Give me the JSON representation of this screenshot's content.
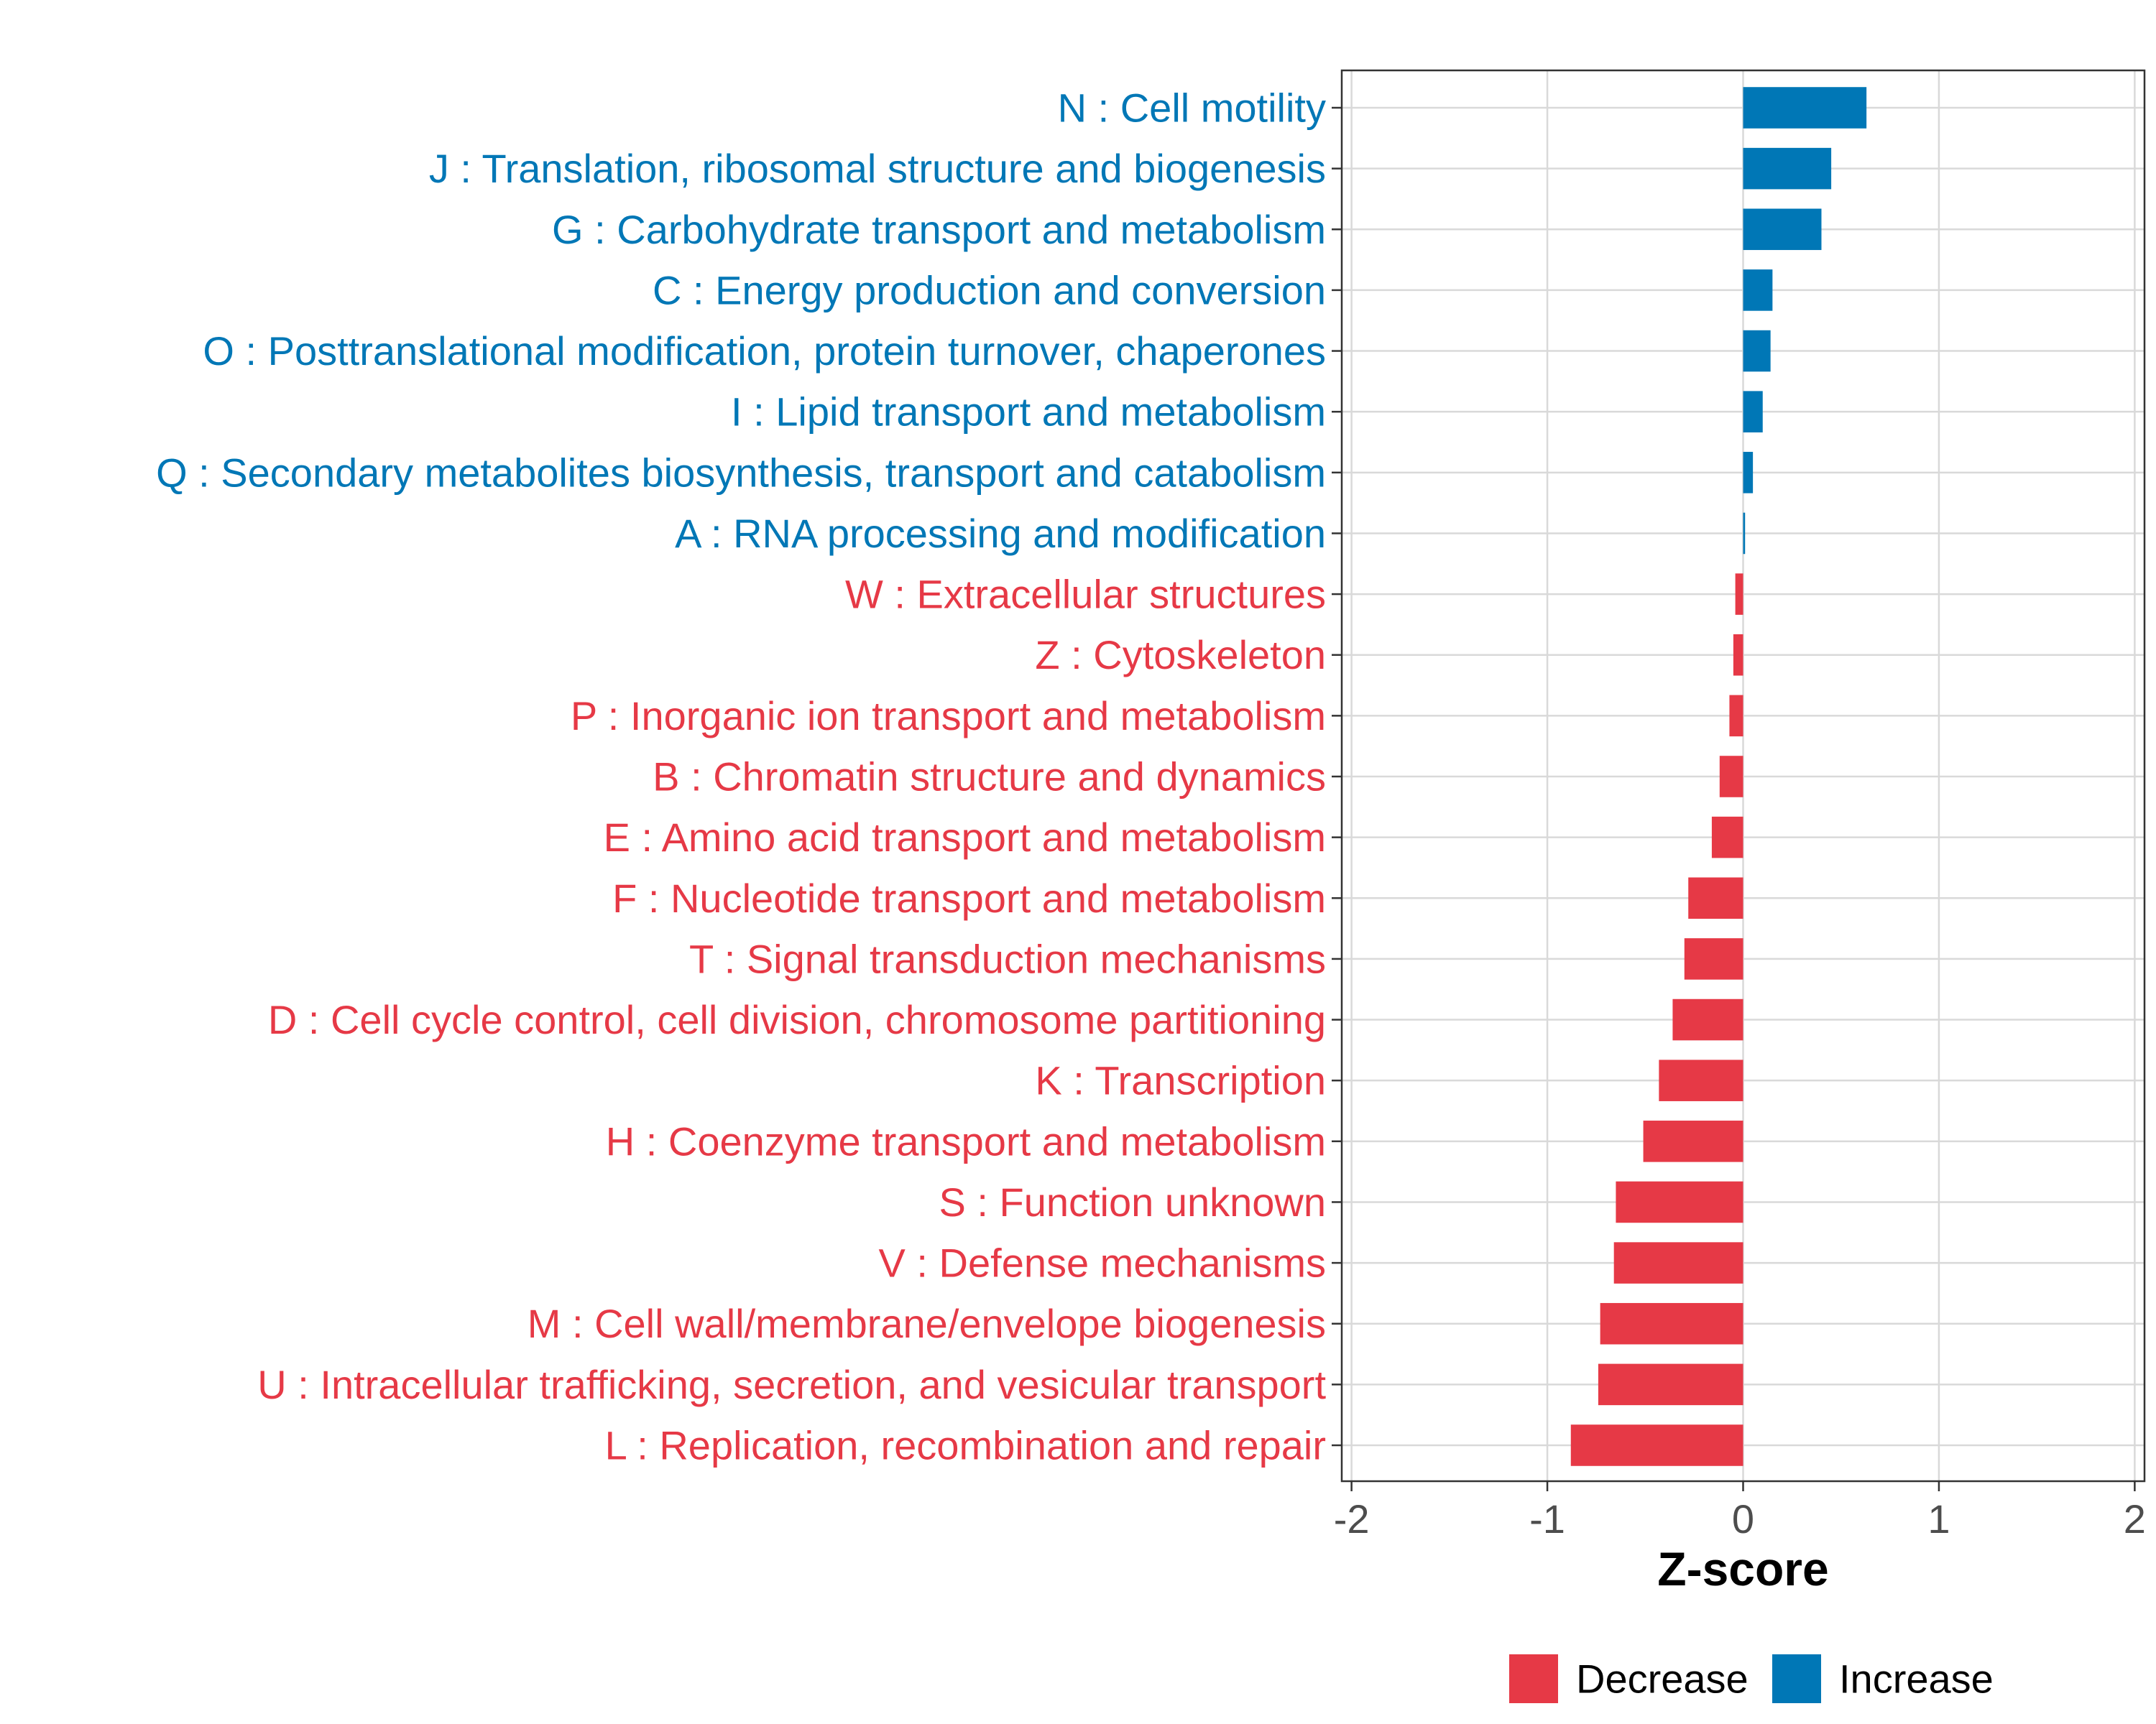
{
  "chart_data": {
    "type": "bar",
    "orientation": "horizontal",
    "title": "",
    "xlabel": "Z-score",
    "ylabel": "",
    "xlim": [
      -2.05,
      2.05
    ],
    "x_ticks": [
      -2,
      -1,
      0,
      1,
      2
    ],
    "x_tick_labels": [
      "-2",
      "-1",
      "0",
      "1",
      "2"
    ],
    "grid": true,
    "colors": {
      "Decrease": "#e63946",
      "Increase": "#0077b6"
    },
    "categories": [
      "N : Cell motility",
      "J : Translation, ribosomal structure and biogenesis",
      "G : Carbohydrate transport and metabolism",
      "C : Energy production and conversion",
      "O : Posttranslational modification, protein turnover, chaperones",
      "I : Lipid transport and metabolism",
      "Q : Secondary metabolites biosynthesis, transport and catabolism",
      "A : RNA processing and modification",
      "W : Extracellular structures",
      "Z : Cytoskeleton",
      "P : Inorganic ion transport and metabolism",
      "B : Chromatin structure and dynamics",
      "E : Amino acid transport and metabolism",
      "F : Nucleotide transport and metabolism",
      "T : Signal transduction mechanisms",
      "D : Cell cycle control, cell division, chromosome partitioning",
      "K : Transcription",
      "H : Coenzyme transport and metabolism",
      "S : Function unknown",
      "V : Defense mechanisms",
      "M : Cell wall/membrane/envelope biogenesis",
      "U : Intracellular trafficking, secretion, and vesicular transport",
      "L : Replication, recombination and repair"
    ],
    "values": [
      0.63,
      0.45,
      0.4,
      0.15,
      0.14,
      0.1,
      0.05,
      0.01,
      -0.04,
      -0.05,
      -0.07,
      -0.12,
      -0.16,
      -0.28,
      -0.3,
      -0.36,
      -0.43,
      -0.51,
      -0.65,
      -0.66,
      -0.73,
      -0.74,
      -0.88
    ],
    "groups": [
      "Increase",
      "Increase",
      "Increase",
      "Increase",
      "Increase",
      "Increase",
      "Increase",
      "Increase",
      "Decrease",
      "Decrease",
      "Decrease",
      "Decrease",
      "Decrease",
      "Decrease",
      "Decrease",
      "Decrease",
      "Decrease",
      "Decrease",
      "Decrease",
      "Decrease",
      "Decrease",
      "Decrease",
      "Decrease"
    ],
    "legend": {
      "position": "bottom",
      "entries": [
        "Decrease",
        "Increase"
      ]
    }
  }
}
